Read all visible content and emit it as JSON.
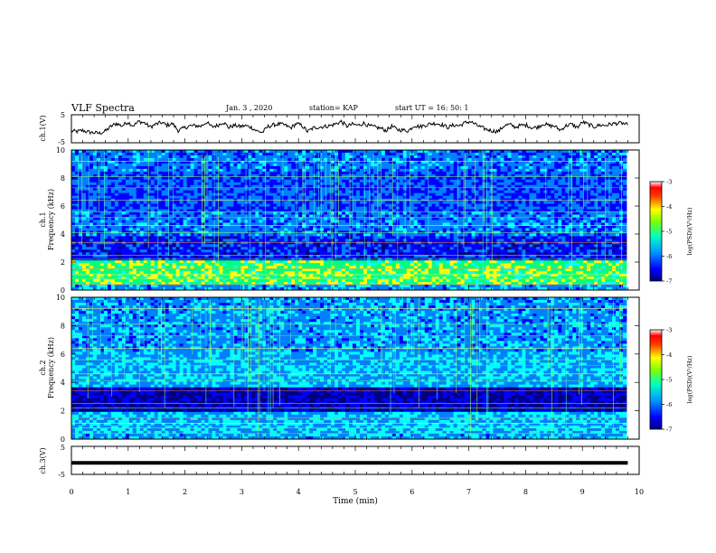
{
  "header": {
    "title": "VLF Spectra",
    "date": "Jan. 3 , 2020",
    "station": "station= KAP",
    "start": "start UT = 16: 50: 1"
  },
  "chart_data": [
    {
      "type": "line",
      "ylabel": "ch.1(V)",
      "yticks": [
        "5",
        "-5"
      ],
      "ylim": [
        -5,
        5
      ],
      "xlim": [
        0,
        10
      ],
      "x_end": 9.8,
      "series": [
        {
          "values": [
            -0.8,
            -1.0,
            -0.6,
            -1.2,
            -1.4,
            -1.6,
            -0.9,
            0.8,
            1.9,
            1.0,
            2.4,
            1.1,
            2.6,
            2.1,
            0.6,
            1.6,
            2.2,
            1.3,
            1.8,
            -0.6,
            0.2,
            1.0,
            1.1,
            0.9,
            2.3,
            0.7,
            1.2,
            2.4,
            0.5,
            1.2,
            0.8,
            1.1,
            0.5,
            -0.8,
            -1.3,
            0.8,
            1.4,
            1.7,
            1.3,
            0.3,
            1.8,
            1.2,
            -1.0,
            0.2,
            0.6,
            0.8,
            1.1,
            1.7,
            2.6,
            0.9,
            1.6,
            1.2,
            2.0,
            1.0,
            0.6,
            0.2,
            -0.6,
            0.9,
            -0.3,
            -0.5,
            -0.7,
            1.2,
            0.7,
            1.3,
            1.8,
            1.9,
            1.4,
            0.5,
            1.3,
            1.1,
            2.1,
            2.6,
            1.4,
            0.4,
            -0.3,
            -0.8,
            -0.9,
            1.1,
            1.5,
            0.6,
            1.2,
            1.3,
            0.3,
            0.6,
            1.8,
            1.1,
            0.9,
            -0.5,
            1.1,
            1.6,
            0.5,
            2.4,
            1.5,
            0.7,
            1.3,
            1.2,
            1.7,
            1.9,
            2.0,
            1.3
          ]
        }
      ],
      "color": "#000000"
    },
    {
      "type": "heatmap",
      "ylabel": "ch.1 Frequency (kHz)",
      "yticks": [
        "0",
        "2",
        "4",
        "6",
        "8",
        "10"
      ],
      "ylim": [
        0,
        10
      ],
      "xlim": [
        0,
        10
      ],
      "colorbar": {
        "label": "log(PSD)(V²/Hz)",
        "ticks": [
          "-3",
          "-4",
          "-5",
          "-6",
          "-7"
        ],
        "range": [
          -7,
          -3
        ]
      }
    },
    {
      "type": "heatmap",
      "ylabel": "ch.2 Frequency (kHz)",
      "yticks": [
        "0",
        "2",
        "4",
        "6",
        "8",
        "10"
      ],
      "ylim": [
        0,
        10
      ],
      "xlim": [
        0,
        10
      ],
      "colorbar": {
        "label": "log(PSD)(V²/Hz)",
        "ticks": [
          "-3",
          "-4",
          "-5",
          "-6",
          "-7"
        ],
        "range": [
          -7,
          -3
        ]
      }
    },
    {
      "type": "line",
      "ylabel": "ch.3(V)",
      "yticks": [
        "5",
        "-5"
      ],
      "ylim": [
        -5,
        5
      ],
      "xlim": [
        0,
        10
      ],
      "x_end": 9.8,
      "series": [
        {
          "values": [
            -0.9,
            -0.9
          ]
        }
      ],
      "xlabel": "Time (min)",
      "xticks": [
        "0",
        "1",
        "2",
        "3",
        "4",
        "5",
        "6",
        "7",
        "8",
        "9",
        "10"
      ]
    }
  ],
  "colormap": [
    "#000080",
    "#0000ff",
    "#0080ff",
    "#00ffff",
    "#00ff80",
    "#ffff00",
    "#ff8000",
    "#ff0000",
    "#ffffff"
  ]
}
